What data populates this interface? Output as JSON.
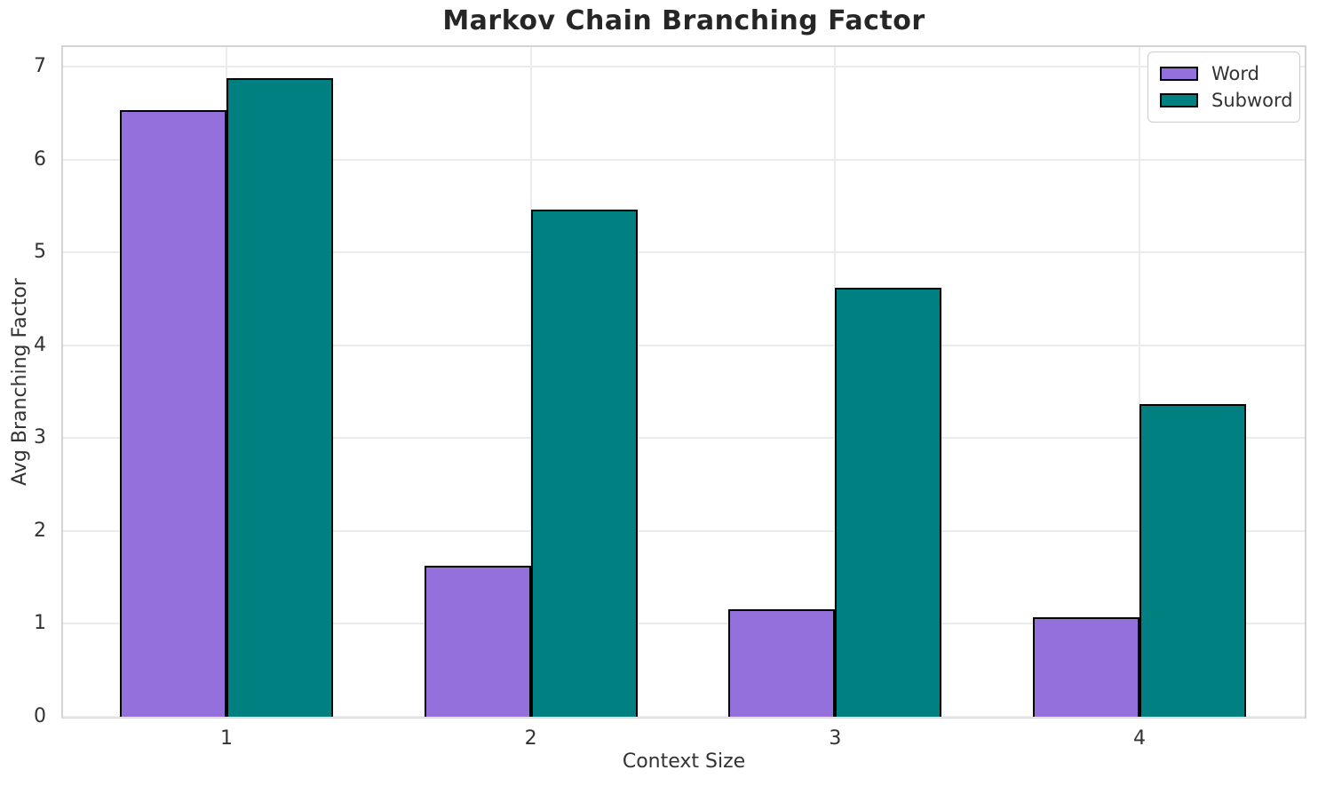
{
  "chart_data": {
    "type": "bar",
    "title": "Markov Chain Branching Factor",
    "xlabel": "Context Size",
    "ylabel": "Avg Branching Factor",
    "categories": [
      "1",
      "2",
      "3",
      "4"
    ],
    "series": [
      {
        "name": "Word",
        "color": "#9370DB",
        "values": [
          6.53,
          1.63,
          1.16,
          1.07
        ]
      },
      {
        "name": "Subword",
        "color": "#008080",
        "values": [
          6.88,
          5.46,
          4.62,
          3.37
        ]
      }
    ],
    "ylim": [
      0,
      7.21
    ],
    "yticks": [
      0,
      1,
      2,
      3,
      4,
      5,
      6,
      7
    ],
    "grid": true,
    "legend_position": "upper right",
    "bar_edge_color": "#000000",
    "grid_color": "#ebebeb",
    "axes_border_color": "#d4d4d4",
    "text_color": "#333333",
    "title_color": "#262626",
    "background_color": "#ffffff"
  }
}
